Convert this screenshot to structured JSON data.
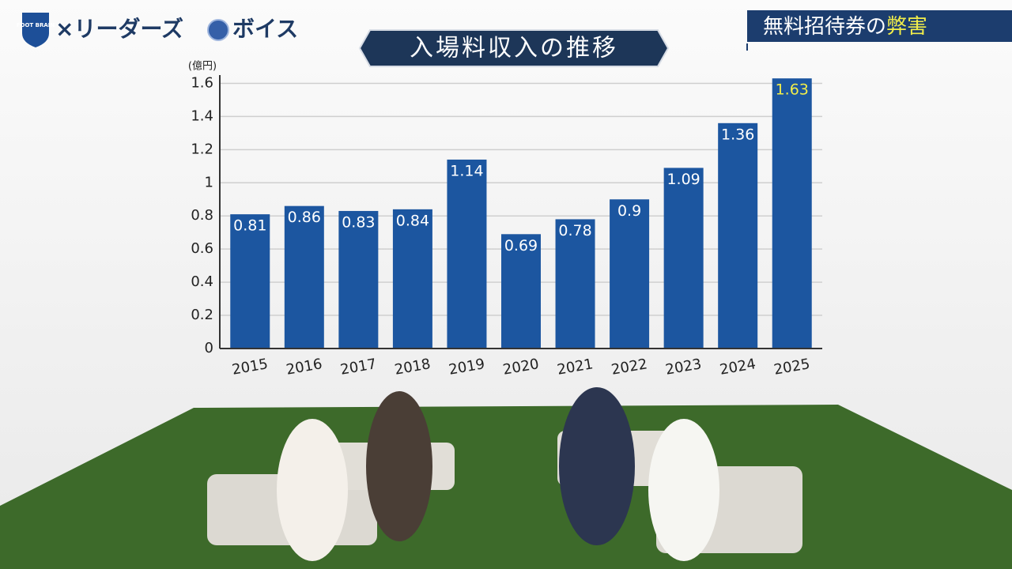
{
  "header": {
    "logo_text": "FOOT BRAIN",
    "show_name_left": "×リーダーズ",
    "show_name_right": "ボイス",
    "topic": [
      "無料招待券の",
      "弊害"
    ]
  },
  "chart_data": {
    "type": "bar",
    "title": "入場料収入の推移",
    "y_label": "(億円)",
    "categories": [
      "2015",
      "2016",
      "2017",
      "2018",
      "2019",
      "2020",
      "2021",
      "2022",
      "2023",
      "2024",
      "2025"
    ],
    "values": [
      0.81,
      0.86,
      0.83,
      0.84,
      1.14,
      0.69,
      0.78,
      0.9,
      1.09,
      1.36,
      1.63
    ],
    "color": "#1c56a0",
    "value_label_colors": [
      "#ffffff",
      "#ffffff",
      "#ffffff",
      "#ffffff",
      "#ffffff",
      "#ffffff",
      "#ffffff",
      "#ffffff",
      "#ffffff",
      "#ffffff",
      "#f2ee4a"
    ],
    "ylim": [
      0,
      1.65
    ],
    "yticks": [
      0,
      0.2,
      0.4,
      0.6,
      0.8,
      1,
      1.2,
      1.4,
      1.6
    ],
    "grid": true
  }
}
